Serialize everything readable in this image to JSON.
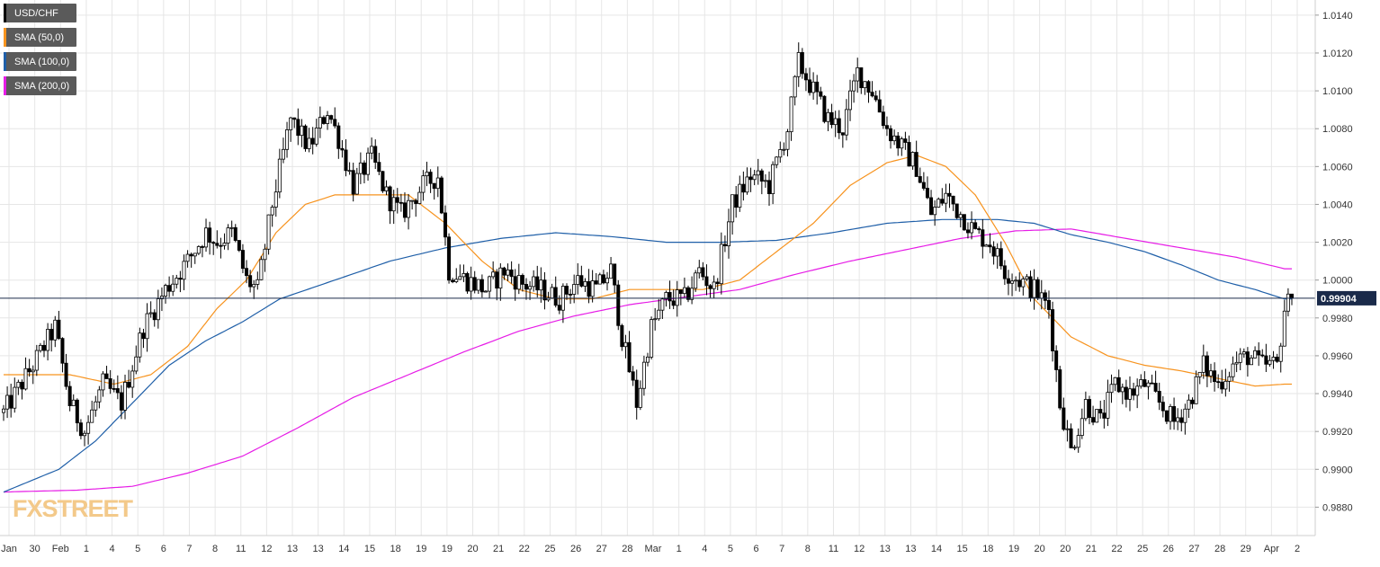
{
  "chart_data": {
    "type": "candlestick",
    "symbol": "USD/CHF",
    "last_price": 0.99904,
    "last_price_label": "0.99904",
    "ylim": [
      0.9865,
      1.0148
    ],
    "y_ticks": [
      "1.0140",
      "1.0120",
      "1.0100",
      "1.0080",
      "1.0060",
      "1.0040",
      "1.0020",
      "1.0000",
      "0.9980",
      "0.9960",
      "0.9940",
      "0.9920",
      "0.9900",
      "0.9880"
    ],
    "y_tick_values": [
      1.014,
      1.012,
      1.01,
      1.008,
      1.006,
      1.004,
      1.002,
      1.0,
      0.998,
      0.996,
      0.994,
      0.992,
      0.99,
      0.988
    ],
    "x_labels": [
      "Jan",
      "30",
      "Feb",
      "1",
      "4",
      "5",
      "6",
      "7",
      "8",
      "11",
      "12",
      "13",
      "13",
      "14",
      "15",
      "18",
      "19",
      "19",
      "20",
      "21",
      "22",
      "25",
      "26",
      "27",
      "28",
      "Mar",
      "1",
      "4",
      "5",
      "6",
      "7",
      "8",
      "11",
      "12",
      "13",
      "13",
      "14",
      "15",
      "18",
      "19",
      "20",
      "20",
      "21",
      "22",
      "25",
      "26",
      "27",
      "28",
      "29",
      "Apr",
      "2"
    ],
    "legend": [
      {
        "label": "USD/CHF",
        "color": "#000000"
      },
      {
        "label": "SMA (50,0)",
        "color": "#f7931e"
      },
      {
        "label": "SMA (100,0)",
        "color": "#1f5fa8"
      },
      {
        "label": "SMA (200,0)",
        "color": "#e61ce6"
      }
    ],
    "colors": {
      "up": "#ffffff",
      "down": "#000000",
      "wick": "#000000",
      "grid": "#e6e6e6",
      "price_line": "#1a2a4a"
    },
    "price_anchors": [
      [
        0,
        0.993
      ],
      [
        8,
        0.9955
      ],
      [
        14,
        0.9975
      ],
      [
        18,
        0.9935
      ],
      [
        22,
        0.992
      ],
      [
        27,
        0.9945
      ],
      [
        32,
        0.9935
      ],
      [
        38,
        0.9975
      ],
      [
        44,
        0.9995
      ],
      [
        50,
        1.001
      ],
      [
        55,
        1.0025
      ],
      [
        58,
        1.002
      ],
      [
        62,
        1.0025
      ],
      [
        66,
        1.0
      ],
      [
        69,
        0.9995
      ],
      [
        73,
        1.004
      ],
      [
        78,
        1.0085
      ],
      [
        83,
        1.007
      ],
      [
        88,
        1.009
      ],
      [
        91,
        1.0075
      ],
      [
        95,
        1.005
      ],
      [
        100,
        1.0065
      ],
      [
        104,
        1.0045
      ],
      [
        108,
        1.0035
      ],
      [
        114,
        1.005
      ],
      [
        118,
        1.0055
      ],
      [
        121,
        1.0005
      ],
      [
        126,
        1.0
      ],
      [
        131,
        0.9995
      ],
      [
        136,
        1.0005
      ],
      [
        141,
        0.9998
      ],
      [
        146,
        0.9995
      ],
      [
        151,
        0.999
      ],
      [
        156,
        1.0
      ],
      [
        161,
        0.9995
      ],
      [
        165,
        1.0005
      ],
      [
        168,
        0.997
      ],
      [
        172,
        0.9935
      ],
      [
        176,
        0.9975
      ],
      [
        180,
        0.999
      ],
      [
        185,
        0.999
      ],
      [
        189,
        1.0005
      ],
      [
        193,
        0.9995
      ],
      [
        198,
        1.004
      ],
      [
        203,
        1.0055
      ],
      [
        208,
        1.005
      ],
      [
        213,
        1.008
      ],
      [
        216,
        1.0115
      ],
      [
        220,
        1.01
      ],
      [
        224,
        1.0085
      ],
      [
        228,
        1.008
      ],
      [
        232,
        1.011
      ],
      [
        236,
        1.01
      ],
      [
        240,
        1.008
      ],
      [
        244,
        1.007
      ],
      [
        248,
        1.006
      ],
      [
        252,
        1.0035
      ],
      [
        256,
        1.0045
      ],
      [
        260,
        1.0035
      ],
      [
        264,
        1.0025
      ],
      [
        268,
        1.002
      ],
      [
        272,
        1.0005
      ],
      [
        276,
        1.0
      ],
      [
        280,
        0.9995
      ],
      [
        284,
        0.9985
      ],
      [
        287,
        0.9935
      ],
      [
        290,
        0.991
      ],
      [
        294,
        0.9935
      ],
      [
        298,
        0.9925
      ],
      [
        302,
        0.9945
      ],
      [
        306,
        0.994
      ],
      [
        310,
        0.9945
      ],
      [
        314,
        0.9935
      ],
      [
        318,
        0.9925
      ],
      [
        322,
        0.9935
      ],
      [
        326,
        0.9955
      ],
      [
        330,
        0.9945
      ],
      [
        334,
        0.9955
      ],
      [
        338,
        0.996
      ],
      [
        342,
        0.9955
      ],
      [
        346,
        0.9955
      ],
      [
        348,
        0.9985
      ],
      [
        350,
        0.999
      ]
    ],
    "sma50": [
      [
        0,
        0.995
      ],
      [
        18,
        0.995
      ],
      [
        30,
        0.9945
      ],
      [
        40,
        0.995
      ],
      [
        50,
        0.9965
      ],
      [
        58,
        0.9985
      ],
      [
        66,
        1.0
      ],
      [
        74,
        1.0025
      ],
      [
        82,
        1.004
      ],
      [
        90,
        1.0045
      ],
      [
        100,
        1.0045
      ],
      [
        110,
        1.0045
      ],
      [
        120,
        1.003
      ],
      [
        130,
        1.001
      ],
      [
        140,
        0.9995
      ],
      [
        150,
        0.999
      ],
      [
        160,
        0.999
      ],
      [
        170,
        0.9995
      ],
      [
        180,
        0.9995
      ],
      [
        190,
        0.9995
      ],
      [
        200,
        1.0
      ],
      [
        210,
        1.0015
      ],
      [
        220,
        1.003
      ],
      [
        230,
        1.005
      ],
      [
        240,
        1.0062
      ],
      [
        248,
        1.0066
      ],
      [
        256,
        1.006
      ],
      [
        264,
        1.0045
      ],
      [
        272,
        1.002
      ],
      [
        280,
        0.999
      ],
      [
        290,
        0.997
      ],
      [
        300,
        0.996
      ],
      [
        310,
        0.9955
      ],
      [
        320,
        0.9952
      ],
      [
        330,
        0.9948
      ],
      [
        340,
        0.9944
      ],
      [
        348,
        0.9945
      ]
    ],
    "sma100": [
      [
        0,
        0.9888
      ],
      [
        15,
        0.99
      ],
      [
        25,
        0.9915
      ],
      [
        35,
        0.9935
      ],
      [
        45,
        0.9955
      ],
      [
        55,
        0.9968
      ],
      [
        65,
        0.9978
      ],
      [
        75,
        0.999
      ],
      [
        90,
        1.0
      ],
      [
        105,
        1.001
      ],
      [
        120,
        1.0017
      ],
      [
        135,
        1.0022
      ],
      [
        150,
        1.0025
      ],
      [
        165,
        1.0023
      ],
      [
        180,
        1.002
      ],
      [
        195,
        1.002
      ],
      [
        210,
        1.0021
      ],
      [
        225,
        1.0025
      ],
      [
        240,
        1.003
      ],
      [
        255,
        1.0032
      ],
      [
        270,
        1.0032
      ],
      [
        280,
        1.003
      ],
      [
        290,
        1.0024
      ],
      [
        300,
        1.002
      ],
      [
        310,
        1.0015
      ],
      [
        320,
        1.0008
      ],
      [
        330,
        1.0
      ],
      [
        340,
        0.9995
      ],
      [
        348,
        0.999
      ]
    ],
    "sma200": [
      [
        0,
        0.9888
      ],
      [
        20,
        0.9889
      ],
      [
        35,
        0.9891
      ],
      [
        50,
        0.9898
      ],
      [
        65,
        0.9907
      ],
      [
        80,
        0.9922
      ],
      [
        95,
        0.9938
      ],
      [
        110,
        0.995
      ],
      [
        125,
        0.9962
      ],
      [
        140,
        0.9973
      ],
      [
        155,
        0.9981
      ],
      [
        170,
        0.9987
      ],
      [
        185,
        0.9991
      ],
      [
        200,
        0.9995
      ],
      [
        215,
        1.0003
      ],
      [
        230,
        1.001
      ],
      [
        245,
        1.0016
      ],
      [
        260,
        1.0022
      ],
      [
        275,
        1.0026
      ],
      [
        290,
        1.0027
      ],
      [
        305,
        1.0022
      ],
      [
        320,
        1.0017
      ],
      [
        335,
        1.0012
      ],
      [
        348,
        1.0006
      ]
    ]
  },
  "logo_text": "FXSTREET"
}
